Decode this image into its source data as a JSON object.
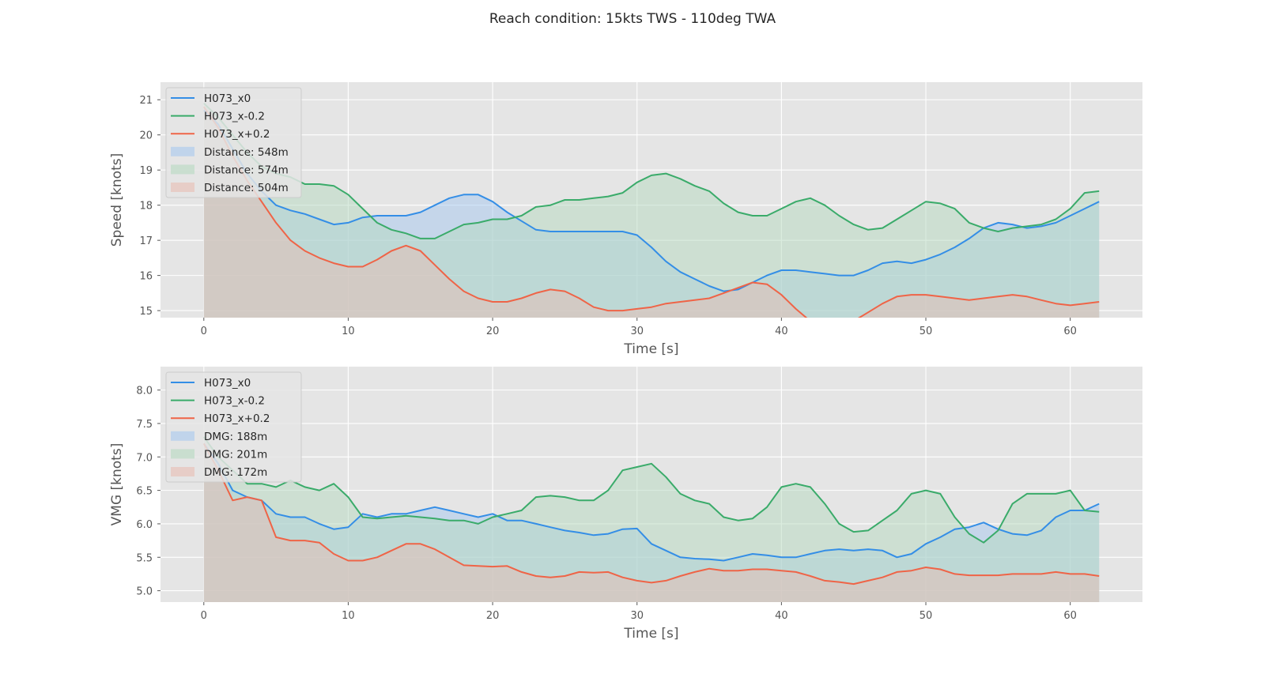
{
  "suptitle": "Reach condition: 15kts TWS  -  110deg TWA",
  "colors": {
    "blue": "#348ee6",
    "green": "#3aab6a",
    "red": "#ef6447",
    "panel_bg": "#e5e5e5",
    "grid": "#ffffff"
  },
  "chart_data": [
    {
      "type": "area",
      "title": "",
      "xlabel": "Time [s]",
      "ylabel": "Speed [knots]",
      "xlim": [
        -3,
        65
      ],
      "ylim": [
        14.8,
        21.5
      ],
      "xticks": [
        0,
        10,
        20,
        30,
        40,
        50,
        60
      ],
      "yticks": [
        15,
        16,
        17,
        18,
        19,
        20,
        21
      ],
      "grid": true,
      "legend_position": "upper-left",
      "legend": [
        "H073_x0",
        "H073_x-0.2",
        "H073_x+0.2",
        "Distance: 548m",
        "Distance: 574m",
        "Distance: 504m"
      ],
      "series": [
        {
          "name": "H073_x0",
          "color": "#348ee6",
          "fill": "#a6c8ef",
          "x": [
            0,
            1,
            2,
            3,
            4,
            5,
            6,
            7,
            8,
            9,
            10,
            11,
            12,
            13,
            14,
            15,
            16,
            17,
            18,
            19,
            20,
            21,
            22,
            23,
            24,
            25,
            26,
            27,
            28,
            29,
            30,
            31,
            32,
            33,
            34,
            35,
            36,
            37,
            38,
            39,
            40,
            41,
            42,
            43,
            44,
            45,
            46,
            47,
            48,
            49,
            50,
            51,
            52,
            53,
            54,
            55,
            56,
            57,
            58,
            59,
            60,
            61,
            62
          ],
          "y": [
            20.7,
            20.3,
            19.6,
            18.9,
            18.4,
            18.0,
            17.85,
            17.75,
            17.6,
            17.45,
            17.5,
            17.65,
            17.7,
            17.7,
            17.7,
            17.8,
            18.0,
            18.2,
            18.3,
            18.3,
            18.1,
            17.8,
            17.55,
            17.3,
            17.25,
            17.25,
            17.25,
            17.25,
            17.25,
            17.25,
            17.15,
            16.8,
            16.4,
            16.1,
            15.9,
            15.7,
            15.55,
            15.6,
            15.8,
            16.0,
            16.15,
            16.15,
            16.1,
            16.05,
            16.0,
            16.0,
            16.15,
            16.35,
            16.4,
            16.35,
            16.45,
            16.6,
            16.8,
            17.05,
            17.35,
            17.5,
            17.45,
            17.35,
            17.4,
            17.5,
            17.7,
            17.9,
            18.1
          ]
        },
        {
          "name": "H073_x-0.2",
          "color": "#3aab6a",
          "fill": "#b5d9bf",
          "x": [
            0,
            1,
            2,
            3,
            4,
            5,
            6,
            7,
            8,
            9,
            10,
            11,
            12,
            13,
            14,
            15,
            16,
            17,
            18,
            19,
            20,
            21,
            22,
            23,
            24,
            25,
            26,
            27,
            28,
            29,
            30,
            31,
            32,
            33,
            34,
            35,
            36,
            37,
            38,
            39,
            40,
            41,
            42,
            43,
            44,
            45,
            46,
            47,
            48,
            49,
            50,
            51,
            52,
            53,
            54,
            55,
            56,
            57,
            58,
            59,
            60,
            61,
            62
          ],
          "y": [
            20.9,
            20.5,
            20.0,
            19.5,
            19.1,
            18.9,
            18.8,
            18.6,
            18.6,
            18.55,
            18.3,
            17.9,
            17.5,
            17.3,
            17.2,
            17.05,
            17.05,
            17.25,
            17.45,
            17.5,
            17.6,
            17.6,
            17.7,
            17.95,
            18.0,
            18.15,
            18.15,
            18.2,
            18.25,
            18.35,
            18.65,
            18.85,
            18.9,
            18.75,
            18.55,
            18.4,
            18.05,
            17.8,
            17.7,
            17.7,
            17.9,
            18.1,
            18.2,
            18.0,
            17.7,
            17.45,
            17.3,
            17.35,
            17.6,
            17.85,
            18.1,
            18.05,
            17.9,
            17.5,
            17.35,
            17.25,
            17.35,
            17.4,
            17.45,
            17.6,
            17.9,
            18.35,
            18.4
          ]
        },
        {
          "name": "H073_x+0.2",
          "color": "#ef6447",
          "fill": "#e8bcb3",
          "x": [
            0,
            1,
            2,
            3,
            4,
            5,
            6,
            7,
            8,
            9,
            10,
            11,
            12,
            13,
            14,
            15,
            16,
            17,
            18,
            19,
            20,
            21,
            22,
            23,
            24,
            25,
            26,
            27,
            28,
            29,
            30,
            31,
            32,
            33,
            34,
            35,
            36,
            37,
            38,
            39,
            40,
            41,
            42,
            43,
            44,
            45,
            46,
            47,
            48,
            49,
            50,
            51,
            52,
            53,
            54,
            55,
            56,
            57,
            58,
            59,
            60,
            61,
            62
          ],
          "y": [
            20.8,
            20.2,
            19.4,
            18.7,
            18.1,
            17.5,
            17.0,
            16.7,
            16.5,
            16.35,
            16.25,
            16.25,
            16.45,
            16.7,
            16.85,
            16.7,
            16.3,
            15.9,
            15.55,
            15.35,
            15.25,
            15.25,
            15.35,
            15.5,
            15.6,
            15.55,
            15.35,
            15.1,
            15.0,
            15.0,
            15.05,
            15.1,
            15.2,
            15.25,
            15.3,
            15.35,
            15.5,
            15.65,
            15.8,
            15.75,
            15.45,
            15.05,
            14.7,
            14.45,
            14.5,
            14.7,
            14.95,
            15.2,
            15.4,
            15.45,
            15.45,
            15.4,
            15.35,
            15.3,
            15.35,
            15.4,
            15.45,
            15.4,
            15.3,
            15.2,
            15.15,
            15.2,
            15.25
          ]
        }
      ]
    },
    {
      "type": "area",
      "title": "",
      "xlabel": "Time [s]",
      "ylabel": "VMG [knots]",
      "xlim": [
        -3,
        65
      ],
      "ylim": [
        4.83,
        8.35
      ],
      "xticks": [
        0,
        10,
        20,
        30,
        40,
        50,
        60
      ],
      "yticks": [
        5.0,
        5.5,
        6.0,
        6.5,
        7.0,
        7.5,
        8.0
      ],
      "grid": true,
      "legend_position": "upper-left",
      "legend": [
        "H073_x0",
        "H073_x-0.2",
        "H073_x+0.2",
        "DMG: 188m",
        "DMG: 201m",
        "DMG: 172m"
      ],
      "series": [
        {
          "name": "H073_x0",
          "color": "#348ee6",
          "fill": "#a6c8ef",
          "x": [
            0,
            1,
            2,
            3,
            4,
            5,
            6,
            7,
            8,
            9,
            10,
            11,
            12,
            13,
            14,
            15,
            16,
            17,
            18,
            19,
            20,
            21,
            22,
            23,
            24,
            25,
            26,
            27,
            28,
            29,
            30,
            31,
            32,
            33,
            34,
            35,
            36,
            37,
            38,
            39,
            40,
            41,
            42,
            43,
            44,
            45,
            46,
            47,
            48,
            49,
            50,
            51,
            52,
            53,
            54,
            55,
            56,
            57,
            58,
            59,
            60,
            61,
            62
          ],
          "y": [
            7.2,
            6.9,
            6.5,
            6.4,
            6.35,
            6.15,
            6.1,
            6.1,
            6.0,
            5.92,
            5.95,
            6.15,
            6.1,
            6.15,
            6.15,
            6.2,
            6.25,
            6.2,
            6.15,
            6.1,
            6.15,
            6.05,
            6.05,
            6.0,
            5.95,
            5.9,
            5.87,
            5.83,
            5.85,
            5.92,
            5.93,
            5.7,
            5.6,
            5.5,
            5.48,
            5.47,
            5.45,
            5.5,
            5.55,
            5.53,
            5.5,
            5.5,
            5.55,
            5.6,
            5.62,
            5.6,
            5.62,
            5.6,
            5.5,
            5.55,
            5.7,
            5.8,
            5.92,
            5.95,
            6.02,
            5.92,
            5.85,
            5.83,
            5.9,
            6.1,
            6.2,
            6.2,
            6.3
          ]
        },
        {
          "name": "H073_x-0.2",
          "color": "#3aab6a",
          "fill": "#b5d9bf",
          "x": [
            0,
            1,
            2,
            3,
            4,
            5,
            6,
            7,
            8,
            9,
            10,
            11,
            12,
            13,
            14,
            15,
            16,
            17,
            18,
            19,
            20,
            21,
            22,
            23,
            24,
            25,
            26,
            27,
            28,
            29,
            30,
            31,
            32,
            33,
            34,
            35,
            36,
            37,
            38,
            39,
            40,
            41,
            42,
            43,
            44,
            45,
            46,
            47,
            48,
            49,
            50,
            51,
            52,
            53,
            54,
            55,
            56,
            57,
            58,
            59,
            60,
            61,
            62
          ],
          "y": [
            7.3,
            7.0,
            6.8,
            6.6,
            6.6,
            6.55,
            6.65,
            6.55,
            6.5,
            6.6,
            6.4,
            6.1,
            6.08,
            6.1,
            6.12,
            6.1,
            6.08,
            6.05,
            6.05,
            6.0,
            6.1,
            6.15,
            6.2,
            6.4,
            6.42,
            6.4,
            6.35,
            6.35,
            6.5,
            6.8,
            6.85,
            6.9,
            6.7,
            6.45,
            6.35,
            6.3,
            6.1,
            6.05,
            6.08,
            6.25,
            6.55,
            6.6,
            6.55,
            6.3,
            6.0,
            5.88,
            5.9,
            6.05,
            6.2,
            6.45,
            6.5,
            6.45,
            6.1,
            5.85,
            5.72,
            5.9,
            6.3,
            6.45,
            6.45,
            6.45,
            6.5,
            6.2,
            6.18
          ]
        },
        {
          "name": "H073_x+0.2",
          "color": "#ef6447",
          "fill": "#e8bcb3",
          "x": [
            0,
            1,
            2,
            3,
            4,
            5,
            6,
            7,
            8,
            9,
            10,
            11,
            12,
            13,
            14,
            15,
            16,
            17,
            18,
            19,
            20,
            21,
            22,
            23,
            24,
            25,
            26,
            27,
            28,
            29,
            30,
            31,
            32,
            33,
            34,
            35,
            36,
            37,
            38,
            39,
            40,
            41,
            42,
            43,
            44,
            45,
            46,
            47,
            48,
            49,
            50,
            51,
            52,
            53,
            54,
            55,
            56,
            57,
            58,
            59,
            60,
            61,
            62
          ],
          "y": [
            7.2,
            6.8,
            6.35,
            6.4,
            6.35,
            5.8,
            5.75,
            5.75,
            5.72,
            5.55,
            5.45,
            5.45,
            5.5,
            5.6,
            5.7,
            5.7,
            5.62,
            5.5,
            5.38,
            5.37,
            5.36,
            5.37,
            5.28,
            5.22,
            5.2,
            5.22,
            5.28,
            5.27,
            5.28,
            5.2,
            5.15,
            5.12,
            5.15,
            5.22,
            5.28,
            5.33,
            5.3,
            5.3,
            5.32,
            5.32,
            5.3,
            5.28,
            5.22,
            5.15,
            5.13,
            5.1,
            5.15,
            5.2,
            5.28,
            5.3,
            5.35,
            5.32,
            5.25,
            5.23,
            5.23,
            5.23,
            5.25,
            5.25,
            5.25,
            5.28,
            5.25,
            5.25,
            5.22
          ]
        }
      ]
    }
  ]
}
